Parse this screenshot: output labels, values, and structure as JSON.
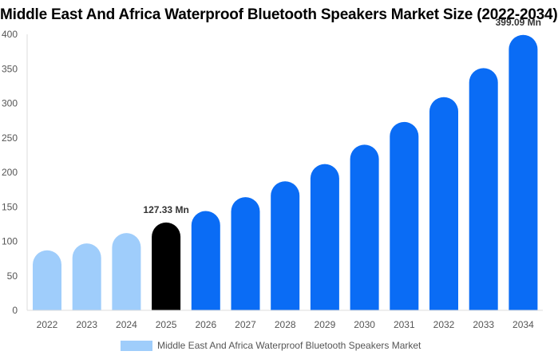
{
  "chart_data": {
    "type": "bar",
    "title": "Middle East And Africa Waterproof Bluetooth Speakers Market Size (2022-2034)",
    "categories": [
      "2022",
      "2023",
      "2024",
      "2025",
      "2026",
      "2027",
      "2028",
      "2029",
      "2030",
      "2031",
      "2032",
      "2033",
      "2034"
    ],
    "series": [
      {
        "name": "Middle East And Africa Waterproof Bluetooth Speakers Market",
        "values": [
          87,
          97,
          112,
          127.33,
          144,
          164,
          187,
          212,
          240,
          273,
          309,
          351,
          399.09
        ]
      }
    ],
    "ylim": [
      0,
      400
    ],
    "yticks": [
      0,
      50,
      100,
      150,
      200,
      250,
      300,
      350,
      400
    ],
    "data_labels": [
      {
        "index": 3,
        "text": "127.33 Mn"
      },
      {
        "index": 12,
        "text": "399.09 Mn"
      }
    ],
    "colors": {
      "historical": "#9fcdfb",
      "current": "#000000",
      "forecast": "#0a6cf5"
    },
    "color_groups": [
      "historical",
      "historical",
      "historical",
      "current",
      "forecast",
      "forecast",
      "forecast",
      "forecast",
      "forecast",
      "forecast",
      "forecast",
      "forecast",
      "forecast"
    ],
    "legend_position": "bottom",
    "grid": false
  }
}
